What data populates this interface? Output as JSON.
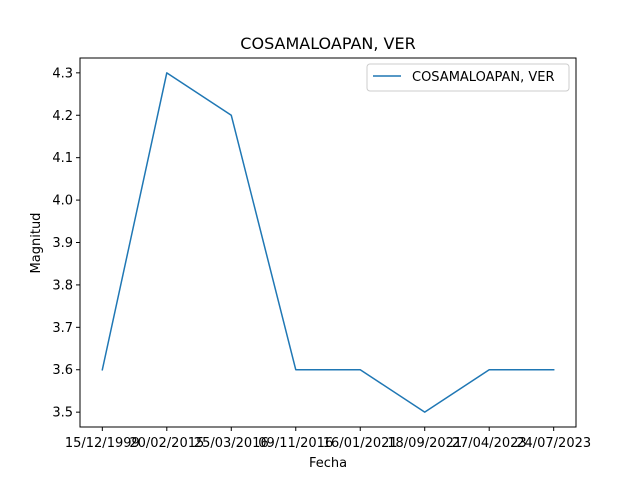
{
  "chart_data": {
    "type": "line",
    "title": "COSAMALOAPAN, VER",
    "xlabel": "Fecha",
    "ylabel": "Magnitud",
    "categories": [
      "15/12/1999",
      "20/02/2015",
      "25/03/2016",
      "09/11/2016",
      "16/01/2021",
      "18/09/2021",
      "27/04/2023",
      "24/07/2023"
    ],
    "series": [
      {
        "name": "COSAMALOAPAN, VER",
        "values": [
          3.6,
          4.3,
          4.2,
          3.6,
          3.6,
          3.5,
          3.6,
          3.6
        ],
        "color": "#1f77b4"
      }
    ],
    "ylim": [
      3.465,
      4.335
    ],
    "yticks": [
      3.5,
      3.6,
      3.7,
      3.8,
      3.9,
      4.0,
      4.1,
      4.2,
      4.3
    ],
    "grid": false,
    "legend": "top-right"
  }
}
